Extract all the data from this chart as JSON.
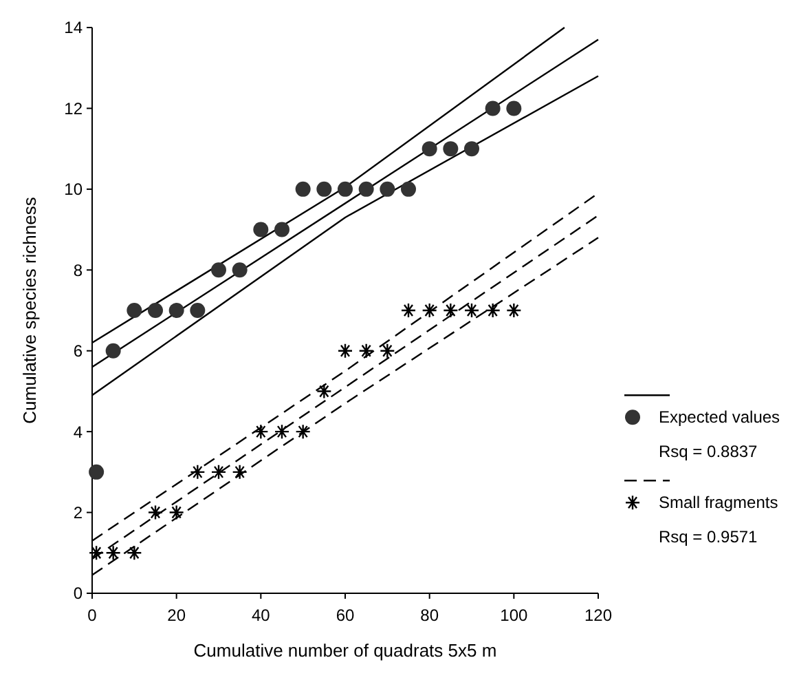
{
  "chart_data": {
    "type": "scatter",
    "xlabel": "Cumulative number of quadrats 5x5 m",
    "ylabel": "Cumulative species richness",
    "xlim": [
      0,
      120
    ],
    "ylim": [
      0,
      14
    ],
    "xticks": [
      0,
      20,
      40,
      60,
      80,
      100,
      120
    ],
    "yticks": [
      0,
      2,
      4,
      6,
      8,
      10,
      12,
      14
    ],
    "legend": "right",
    "grid": false,
    "annotations": [
      "Rsq = 0.8837",
      "Rsq = 0.9571"
    ],
    "series": [
      {
        "type": "line",
        "line_style": "solid",
        "marker": "none",
        "color": "#000000",
        "x": [
          0,
          60,
          112
        ],
        "values": [
          6.2,
          10.05,
          14.0
        ]
      },
      {
        "type": "line",
        "line_style": "solid",
        "marker": "none",
        "color": "#000000",
        "x": [
          0,
          60,
          120
        ],
        "values": [
          4.9,
          9.3,
          12.8
        ]
      },
      {
        "type": "line",
        "line_style": "solid",
        "marker": "none",
        "color": "#000000",
        "x": [
          0,
          120
        ],
        "values": [
          5.6,
          13.7
        ]
      },
      {
        "name": "Expected values",
        "marker": "circle",
        "color": "#333333",
        "x": [
          1,
          5,
          10,
          15,
          20,
          25,
          30,
          35,
          40,
          45,
          50,
          55,
          60,
          65,
          70,
          75,
          80,
          85,
          90,
          95,
          100
        ],
        "values": [
          3,
          6,
          7,
          7,
          7,
          7,
          8,
          8,
          9,
          9,
          10,
          10,
          10,
          10,
          10,
          10,
          11,
          11,
          11,
          12,
          12
        ]
      },
      {
        "type": "line",
        "line_style": "dashed",
        "marker": "none",
        "color": "#000000",
        "x": [
          0,
          60,
          120
        ],
        "values": [
          1.3,
          5.5,
          9.9
        ]
      },
      {
        "type": "line",
        "line_style": "dashed",
        "marker": "none",
        "color": "#000000",
        "x": [
          0,
          60,
          120
        ],
        "values": [
          0.45,
          4.7,
          8.8
        ]
      },
      {
        "type": "line",
        "line_style": "dashed",
        "marker": "none",
        "color": "#000000",
        "x": [
          0,
          60,
          120
        ],
        "values": [
          0.85,
          5.1,
          9.35
        ]
      },
      {
        "name": "Small fragments",
        "marker": "cross",
        "color": "#000000",
        "x": [
          1,
          5,
          10,
          15,
          20,
          25,
          30,
          35,
          40,
          45,
          50,
          55,
          60,
          65,
          70,
          75,
          80,
          85,
          90,
          95,
          100
        ],
        "values": [
          1,
          1,
          1,
          2,
          2,
          3,
          3,
          3,
          4,
          4,
          4,
          5,
          6,
          6,
          6,
          7,
          7,
          7,
          7,
          7,
          7
        ]
      }
    ]
  }
}
